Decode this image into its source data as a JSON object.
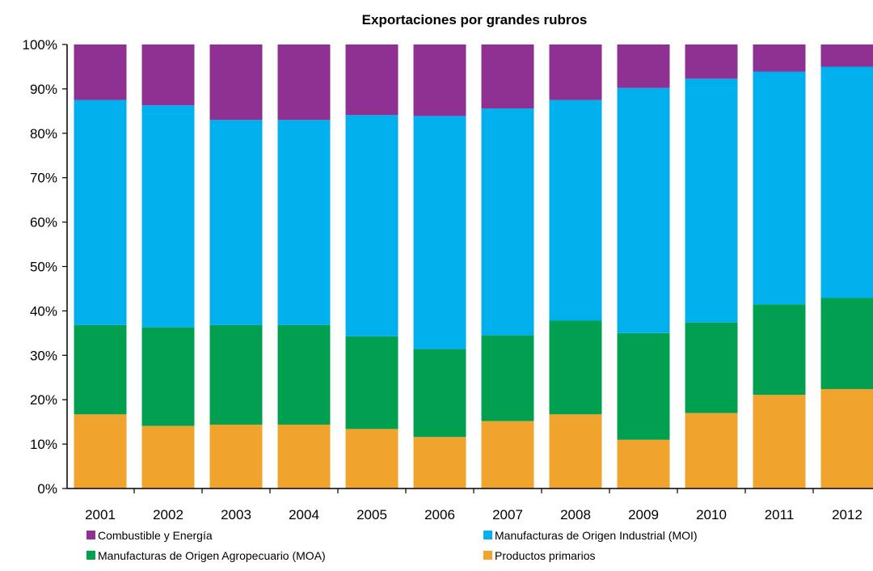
{
  "chart_data": {
    "type": "bar",
    "stacked": true,
    "title": "Exportaciones por grandes rubros",
    "xlabel": "",
    "ylabel": "",
    "ylim": [
      0,
      1
    ],
    "y_ticks": [
      "0%",
      "10%",
      "20%",
      "30%",
      "40%",
      "50%",
      "60%",
      "70%",
      "80%",
      "90%",
      "100%"
    ],
    "categories": [
      "2001",
      "2002",
      "2003",
      "2004",
      "2005",
      "2006",
      "2007",
      "2008",
      "2009",
      "2010",
      "2011",
      "2012"
    ],
    "series": [
      {
        "name": "Productos primarios",
        "color": "#F0A42E",
        "values": [
          0.167,
          0.141,
          0.144,
          0.144,
          0.134,
          0.116,
          0.152,
          0.167,
          0.11,
          0.17,
          0.211,
          0.224
        ]
      },
      {
        "name": "Manufacturas de Origen Agropecuario (MOA)",
        "color": "#00A050",
        "values": [
          0.201,
          0.222,
          0.224,
          0.224,
          0.209,
          0.198,
          0.193,
          0.211,
          0.24,
          0.204,
          0.204,
          0.205
        ]
      },
      {
        "name": "Manufacturas de Origen Industrial (MOI)",
        "color": "#00B0EC",
        "values": [
          0.507,
          0.5,
          0.462,
          0.462,
          0.498,
          0.525,
          0.511,
          0.497,
          0.552,
          0.549,
          0.524,
          0.521
        ]
      },
      {
        "name": "Combustible y Energía",
        "color": "#8E3192",
        "values": [
          0.125,
          0.137,
          0.17,
          0.17,
          0.159,
          0.161,
          0.144,
          0.125,
          0.098,
          0.077,
          0.061,
          0.05
        ]
      }
    ],
    "legend": {
      "placement": "bottom",
      "entries": [
        {
          "label": "Combustible y Energía",
          "color": "#8E3192"
        },
        {
          "label": "Manufacturas de Origen Industrial (MOI)",
          "color": "#00B0EC"
        },
        {
          "label": "Manufacturas de Origen Agropecuario (MOA)",
          "color": "#00A050"
        },
        {
          "label": "Productos primarios",
          "color": "#F0A42E"
        }
      ]
    },
    "grid": false
  }
}
